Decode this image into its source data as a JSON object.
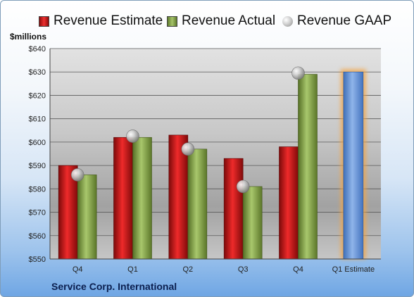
{
  "chart_data": {
    "type": "bar",
    "title": "",
    "ylabel": "$millions",
    "xlabel": "",
    "ylim": [
      550,
      640
    ],
    "ytick_step": 10,
    "yticks": [
      "$550",
      "$560",
      "$570",
      "$580",
      "$590",
      "$600",
      "$610",
      "$620",
      "$630",
      "$640"
    ],
    "categories": [
      "Q4",
      "Q1",
      "Q2",
      "Q3",
      "Q4",
      "Q1 Estimate"
    ],
    "series": [
      {
        "name": "Revenue Estimate",
        "type": "bar",
        "values": [
          590,
          602,
          603,
          593,
          598,
          null
        ]
      },
      {
        "name": "Revenue Actual",
        "type": "bar",
        "values": [
          586,
          602,
          597,
          581,
          629,
          null
        ]
      },
      {
        "name": "Revenue GAAP",
        "type": "scatter",
        "values": [
          586,
          602.5,
          597,
          581,
          629.5,
          null
        ]
      },
      {
        "name": "",
        "type": "bar",
        "values": [
          null,
          null,
          null,
          null,
          null,
          630
        ]
      }
    ],
    "legend": "top",
    "grid": true,
    "colors": {
      "estimate": "#c8161d",
      "actual": "#8db050",
      "gaap": "#bdbdbd",
      "forecast": "#6a9ad8",
      "forecast_glow": "#f5a442"
    }
  },
  "legend": {
    "estimate": "Revenue Estimate",
    "actual": "Revenue Actual",
    "gaap": "Revenue GAAP"
  },
  "footer": {
    "company": "Service Corp. International"
  }
}
